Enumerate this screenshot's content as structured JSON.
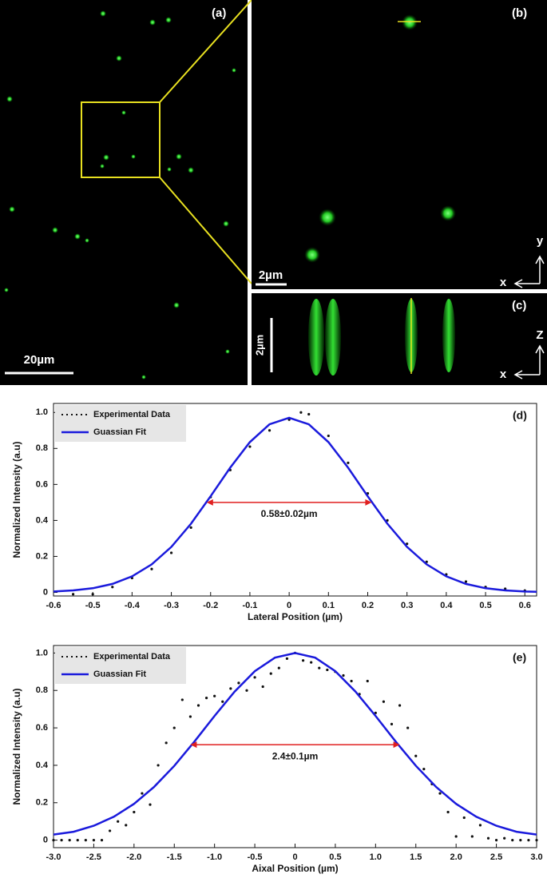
{
  "images": {
    "a": {
      "label": "(a)",
      "scale_bar": "20µm"
    },
    "b": {
      "label": "(b)",
      "scale_bar": "2µm",
      "axes": [
        "y",
        "x"
      ]
    },
    "c": {
      "label": "(c)",
      "scale_bar": "2µm",
      "axes": [
        "Z",
        "x"
      ]
    }
  },
  "chart_data": [
    {
      "type": "line",
      "panel": "(d)",
      "xlabel": "Lateral Position (µm)",
      "ylabel": "Normalized Intensity (a.u)",
      "xlim": [
        -0.6,
        0.63
      ],
      "ylim": [
        -0.02,
        1.05
      ],
      "xticks": [
        -0.6,
        -0.5,
        -0.4,
        -0.3,
        -0.2,
        -0.1,
        0,
        0.1,
        0.2,
        0.3,
        0.4,
        0.5,
        0.6
      ],
      "yticks": [
        0,
        0.2,
        0.4,
        0.6,
        0.8,
        {
          "value": 1,
          "label": "1.0"
        }
      ],
      "legend": "upper left",
      "annotation": {
        "text": "0.58±0.02µm",
        "x": [
          -0.21,
          0.21
        ],
        "y": 0.5,
        "color": "#e02020"
      },
      "series": [
        {
          "name": "Experimental Data",
          "color": "#111111",
          "style": "dotted",
          "x": [
            -0.55,
            -0.5,
            -0.45,
            -0.4,
            -0.35,
            -0.3,
            -0.25,
            -0.2,
            -0.15,
            -0.1,
            -0.05,
            0,
            0.03,
            0.05,
            0.1,
            0.15,
            0.2,
            0.25,
            0.3,
            0.35,
            0.4,
            0.45,
            0.5,
            0.55,
            0.6
          ],
          "values": [
            -0.01,
            -0.01,
            0.03,
            0.08,
            0.13,
            0.22,
            0.36,
            0.53,
            0.68,
            0.81,
            0.9,
            0.96,
            1.0,
            0.99,
            0.87,
            0.72,
            0.55,
            0.4,
            0.27,
            0.17,
            0.1,
            0.06,
            0.03,
            0.02,
            0.01
          ]
        },
        {
          "name": "Guassian Fit",
          "color": "#1a1adc",
          "style": "solid",
          "x": [
            -0.6,
            -0.55,
            -0.5,
            -0.45,
            -0.4,
            -0.35,
            -0.3,
            -0.25,
            -0.2,
            -0.15,
            -0.1,
            -0.05,
            0,
            0.05,
            0.1,
            0.15,
            0.2,
            0.25,
            0.3,
            0.35,
            0.4,
            0.45,
            0.5,
            0.55,
            0.6,
            0.63
          ],
          "values": [
            0.005,
            0.011,
            0.023,
            0.047,
            0.089,
            0.156,
            0.253,
            0.382,
            0.534,
            0.693,
            0.835,
            0.934,
            0.97,
            0.934,
            0.835,
            0.693,
            0.534,
            0.382,
            0.253,
            0.156,
            0.089,
            0.047,
            0.023,
            0.011,
            0.005,
            0.003
          ]
        }
      ]
    },
    {
      "type": "line",
      "panel": "(e)",
      "xlabel": "Aixal Position (µm)",
      "ylabel": "Normalized Intensity (a.u)",
      "xlim": [
        -3,
        3
      ],
      "ylim": [
        -0.04,
        1.04
      ],
      "xticks": [
        {
          "value": -3,
          "label": "-3.0"
        },
        -2.5,
        {
          "value": -2,
          "label": "-2.0"
        },
        -1.5,
        {
          "value": -1,
          "label": "-1.0"
        },
        -0.5,
        0,
        0.5,
        {
          "value": 1,
          "label": "1.0"
        },
        1.5,
        {
          "value": 2,
          "label": "2.0"
        },
        2.5,
        {
          "value": 3,
          "label": "3.0"
        }
      ],
      "yticks": [
        0,
        0.2,
        0.4,
        0.6,
        0.8,
        {
          "value": 1,
          "label": "1.0"
        }
      ],
      "legend": "upper left",
      "annotation": {
        "text": "2.4±0.1µm",
        "x": [
          -1.3,
          1.3
        ],
        "y": 0.51,
        "color": "#e02020"
      },
      "series": [
        {
          "name": "Experimental Data",
          "color": "#111111",
          "style": "dotted",
          "x": [
            -3,
            -2.9,
            -2.8,
            -2.7,
            -2.6,
            -2.5,
            -2.4,
            -2.3,
            -2.2,
            -2.1,
            -2,
            -1.9,
            -1.8,
            -1.7,
            -1.6,
            -1.5,
            -1.4,
            -1.3,
            -1.2,
            -1.1,
            -1,
            -0.9,
            -0.8,
            -0.7,
            -0.6,
            -0.5,
            -0.4,
            -0.3,
            -0.2,
            -0.1,
            0,
            0.1,
            0.2,
            0.3,
            0.4,
            0.5,
            0.6,
            0.7,
            0.8,
            0.9,
            1,
            1.1,
            1.2,
            1.3,
            1.4,
            1.5,
            1.6,
            1.7,
            1.8,
            1.9,
            2,
            2.1,
            2.2,
            2.3,
            2.4,
            2.5,
            2.6,
            2.7,
            2.8,
            2.9,
            3
          ],
          "values": [
            0,
            0,
            0,
            0,
            0,
            0,
            0,
            0.05,
            0.1,
            0.08,
            0.15,
            0.25,
            0.19,
            0.4,
            0.52,
            0.6,
            0.75,
            0.66,
            0.72,
            0.76,
            0.77,
            0.74,
            0.81,
            0.84,
            0.8,
            0.87,
            0.82,
            0.89,
            0.92,
            0.97,
            1.0,
            0.96,
            0.95,
            0.92,
            0.91,
            0.9,
            0.88,
            0.85,
            0.78,
            0.85,
            0.68,
            0.74,
            0.62,
            0.72,
            0.6,
            0.45,
            0.38,
            0.3,
            0.25,
            0.15,
            0.02,
            0.12,
            0.02,
            0.08,
            0.01,
            0,
            0.01,
            0,
            0,
            0,
            0
          ]
        },
        {
          "name": "Guassian Fit",
          "color": "#1a1adc",
          "style": "solid",
          "x": [
            -3,
            -2.75,
            -2.5,
            -2.25,
            -2,
            -1.75,
            -1.5,
            -1.25,
            -1,
            -0.75,
            -0.5,
            -0.25,
            0,
            0.25,
            0.5,
            0.75,
            1,
            1.25,
            1.5,
            1.75,
            2,
            2.25,
            2.5,
            2.75,
            3
          ],
          "values": [
            0.03,
            0.045,
            0.077,
            0.125,
            0.194,
            0.285,
            0.397,
            0.527,
            0.664,
            0.794,
            0.903,
            0.975,
            1.0,
            0.975,
            0.903,
            0.794,
            0.664,
            0.527,
            0.397,
            0.285,
            0.194,
            0.125,
            0.077,
            0.045,
            0.03
          ]
        }
      ]
    }
  ]
}
